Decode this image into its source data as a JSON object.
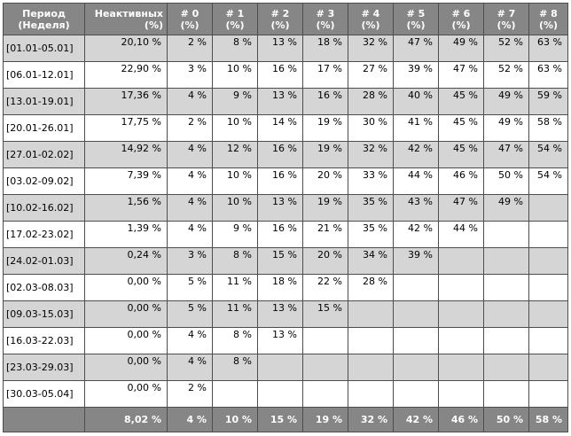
{
  "headers": {
    "period": "Период (Неделя)",
    "inactive": "Неактивных (%)",
    "weeks": [
      "# 0 (%)",
      "# 1 (%)",
      "# 2 (%)",
      "# 3 (%)",
      "# 4 (%)",
      "# 5 (%)",
      "# 6 (%)",
      "# 7 (%)",
      "# 8 (%)"
    ]
  },
  "rows": [
    {
      "period": "[01.01-05.01]",
      "inactive": "20,10 %",
      "weeks": [
        "2 %",
        "8 %",
        "13 %",
        "18 %",
        "32 %",
        "47 %",
        "49 %",
        "52 %",
        "63 %"
      ]
    },
    {
      "period": "[06.01-12.01]",
      "inactive": "22,90 %",
      "weeks": [
        "3 %",
        "10 %",
        "16 %",
        "17 %",
        "27 %",
        "39 %",
        "47 %",
        "52 %",
        "63 %"
      ]
    },
    {
      "period": "[13.01-19.01]",
      "inactive": "17,36 %",
      "weeks": [
        "4 %",
        "9 %",
        "13 %",
        "16 %",
        "28 %",
        "40 %",
        "45 %",
        "49 %",
        "59 %"
      ]
    },
    {
      "period": "[20.01-26.01]",
      "inactive": "17,75 %",
      "weeks": [
        "2 %",
        "10 %",
        "14 %",
        "19 %",
        "30 %",
        "41 %",
        "45 %",
        "49 %",
        "58 %"
      ]
    },
    {
      "period": "[27.01-02.02]",
      "inactive": "14,92 %",
      "weeks": [
        "4 %",
        "12 %",
        "16 %",
        "19 %",
        "32 %",
        "42 %",
        "45 %",
        "47 %",
        "54 %"
      ]
    },
    {
      "period": "[03.02-09.02]",
      "inactive": "7,39 %",
      "weeks": [
        "4 %",
        "10 %",
        "16 %",
        "20 %",
        "33 %",
        "44 %",
        "46 %",
        "50 %",
        "54 %"
      ]
    },
    {
      "period": "[10.02-16.02]",
      "inactive": "1,56 %",
      "weeks": [
        "4 %",
        "10 %",
        "13 %",
        "19 %",
        "35 %",
        "43 %",
        "47 %",
        "49 %",
        ""
      ]
    },
    {
      "period": "[17.02-23.02]",
      "inactive": "1,39 %",
      "weeks": [
        "4 %",
        "9 %",
        "16 %",
        "21 %",
        "35 %",
        "42 %",
        "44 %",
        "",
        ""
      ]
    },
    {
      "period": "[24.02-01.03]",
      "inactive": "0,24 %",
      "weeks": [
        "3 %",
        "8 %",
        "15 %",
        "20 %",
        "34 %",
        "39 %",
        "",
        "",
        ""
      ]
    },
    {
      "period": "[02.03-08.03]",
      "inactive": "0,00 %",
      "weeks": [
        "5 %",
        "11 %",
        "18 %",
        "22 %",
        "28 %",
        "",
        "",
        "",
        ""
      ]
    },
    {
      "period": "[09.03-15.03]",
      "inactive": "0,00 %",
      "weeks": [
        "5 %",
        "11 %",
        "13 %",
        "15 %",
        "",
        "",
        "",
        "",
        ""
      ]
    },
    {
      "period": "[16.03-22.03]",
      "inactive": "0,00 %",
      "weeks": [
        "4 %",
        "8 %",
        "13 %",
        "",
        "",
        "",
        "",
        "",
        ""
      ]
    },
    {
      "period": "[23.03-29.03]",
      "inactive": "0,00 %",
      "weeks": [
        "4 %",
        "8 %",
        "",
        "",
        "",
        "",
        "",
        "",
        ""
      ]
    },
    {
      "period": "[30.03-05.04]",
      "inactive": "0,00 %",
      "weeks": [
        "2 %",
        "",
        "",
        "",
        "",
        "",
        "",
        "",
        ""
      ]
    }
  ],
  "totals": {
    "period": "",
    "inactive": "8,02 %",
    "weeks": [
      "4 %",
      "10 %",
      "15 %",
      "19 %",
      "32 %",
      "42 %",
      "46 %",
      "50 %",
      "58 %"
    ]
  },
  "colors": {
    "header_bg": "#868686",
    "shade_row": "#d5d5d5",
    "plain_row": "#ffffff",
    "border": "#4d4d4d"
  }
}
